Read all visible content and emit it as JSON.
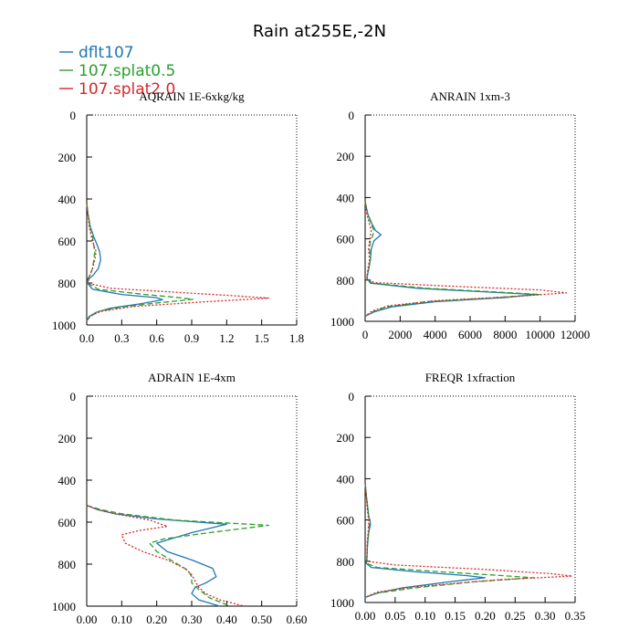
{
  "figure": {
    "title": "Rain at255E,-2N"
  },
  "legend": [
    {
      "name": "dflt107",
      "color": "#1f77b4",
      "dash": "solid"
    },
    {
      "name": "107.splat0.5",
      "color": "#2ca02c",
      "dash": "dashed"
    },
    {
      "name": "107.splat2.0",
      "color": "#d62728",
      "dash": "dotted"
    }
  ],
  "chart_data": [
    {
      "type": "line",
      "title": "AQRAIN  1E-6xkg/kg",
      "xlabel": "",
      "ylabel": "",
      "xlim": [
        0,
        1.8
      ],
      "ylim": [
        1000,
        0
      ],
      "xticks": [
        "0.0",
        "0.3",
        "0.6",
        "0.9",
        "1.2",
        "1.5",
        "1.8"
      ],
      "xtick_values": [
        0,
        0.3,
        0.6,
        0.9,
        1.2,
        1.5,
        1.8
      ],
      "yticks": [
        "0",
        "200",
        "400",
        "600",
        "800",
        "1000"
      ],
      "ytick_values": [
        0,
        200,
        400,
        600,
        800,
        1000
      ],
      "series": [
        {
          "name": "dflt107",
          "x": [
            0,
            0.01,
            0.03,
            0.06,
            0.09,
            0.11,
            0.12,
            0.1,
            0.06,
            0.02,
            0.005,
            0.05,
            0.3,
            0.6,
            0.65,
            0.45,
            0.2,
            0.08,
            0.02,
            0
          ],
          "y": [
            420,
            470,
            530,
            580,
            620,
            650,
            690,
            730,
            760,
            780,
            800,
            830,
            855,
            870,
            880,
            900,
            920,
            940,
            960,
            980
          ]
        },
        {
          "name": "107.splat0.5",
          "x": [
            0,
            0.01,
            0.03,
            0.05,
            0.06,
            0.07,
            0.06,
            0.05,
            0.03,
            0.01,
            0.005,
            0.1,
            0.5,
            0.8,
            0.91,
            0.6,
            0.3,
            0.1,
            0.03,
            0
          ],
          "y": [
            420,
            470,
            530,
            580,
            620,
            650,
            690,
            730,
            760,
            780,
            800,
            830,
            855,
            870,
            878,
            895,
            915,
            935,
            960,
            980
          ]
        },
        {
          "name": "107.splat2.0",
          "x": [
            0,
            0.01,
            0.02,
            0.04,
            0.06,
            0.08,
            0.07,
            0.05,
            0.03,
            0.01,
            0.005,
            0.2,
            0.8,
            1.3,
            1.56,
            1.0,
            0.4,
            0.12,
            0.03,
            0
          ],
          "y": [
            420,
            470,
            530,
            580,
            620,
            650,
            690,
            730,
            760,
            780,
            800,
            825,
            845,
            862,
            872,
            890,
            912,
            935,
            958,
            980
          ]
        }
      ]
    },
    {
      "type": "line",
      "title": "ANRAIN  1xm-3",
      "xlabel": "",
      "ylabel": "",
      "xlim": [
        0,
        12000
      ],
      "ylim": [
        1000,
        0
      ],
      "xticks": [
        "0",
        "2000",
        "4000",
        "6000",
        "8000",
        "10000",
        "12000"
      ],
      "xtick_values": [
        0,
        2000,
        4000,
        6000,
        8000,
        10000,
        12000
      ],
      "yticks": [
        "0",
        "200",
        "400",
        "600",
        "800",
        "1000"
      ],
      "ytick_values": [
        0,
        200,
        400,
        600,
        800,
        1000
      ],
      "series": [
        {
          "name": "dflt107",
          "x": [
            0,
            150,
            400,
            600,
            900,
            500,
            350,
            300,
            200,
            100,
            300,
            3000,
            7500,
            9700,
            8000,
            4000,
            1500,
            500,
            0
          ],
          "y": [
            420,
            480,
            530,
            560,
            580,
            610,
            650,
            700,
            750,
            790,
            815,
            840,
            860,
            870,
            885,
            905,
            930,
            955,
            975
          ]
        },
        {
          "name": "107.splat0.5",
          "x": [
            0,
            150,
            350,
            500,
            450,
            300,
            250,
            300,
            200,
            100,
            400,
            3500,
            8000,
            10000,
            7500,
            3500,
            1200,
            400,
            0
          ],
          "y": [
            420,
            480,
            530,
            560,
            580,
            610,
            650,
            700,
            750,
            790,
            815,
            840,
            860,
            870,
            885,
            905,
            930,
            955,
            975
          ]
        },
        {
          "name": "107.splat2.0",
          "x": [
            0,
            100,
            250,
            350,
            300,
            250,
            200,
            250,
            150,
            100,
            500,
            5000,
            10000,
            11500,
            8500,
            4000,
            1300,
            400,
            0
          ],
          "y": [
            420,
            480,
            530,
            560,
            580,
            610,
            650,
            700,
            750,
            790,
            812,
            830,
            848,
            862,
            880,
            900,
            925,
            950,
            975
          ]
        }
      ]
    },
    {
      "type": "line",
      "title": "ADRAIN  1E-4xm",
      "xlabel": "",
      "ylabel": "",
      "xlim": [
        0,
        0.6
      ],
      "ylim": [
        1000,
        0
      ],
      "xticks": [
        "0.00",
        "0.10",
        "0.20",
        "0.30",
        "0.40",
        "0.50",
        "0.60"
      ],
      "xtick_values": [
        0,
        0.1,
        0.2,
        0.3,
        0.4,
        0.5,
        0.6
      ],
      "yticks": [
        "0",
        "200",
        "400",
        "600",
        "800",
        "1000"
      ],
      "ytick_values": [
        0,
        200,
        400,
        600,
        800,
        1000
      ],
      "series": [
        {
          "name": "dflt107",
          "x": [
            0,
            0.03,
            0.08,
            0.2,
            0.4,
            0.3,
            0.24,
            0.2,
            0.23,
            0.3,
            0.36,
            0.37,
            0.34,
            0.31,
            0.3,
            0.32,
            0.38
          ],
          "y": [
            520,
            540,
            560,
            585,
            610,
            650,
            680,
            700,
            740,
            780,
            820,
            860,
            890,
            910,
            940,
            970,
            1000
          ]
        },
        {
          "name": "107.splat0.5",
          "x": [
            0,
            0.04,
            0.1,
            0.25,
            0.52,
            0.35,
            0.22,
            0.18,
            0.2,
            0.25,
            0.29,
            0.3,
            0.3,
            0.32,
            0.35,
            0.41
          ],
          "y": [
            520,
            540,
            560,
            590,
            615,
            650,
            680,
            700,
            740,
            790,
            830,
            860,
            890,
            920,
            960,
            1000
          ]
        },
        {
          "name": "107.splat2.0",
          "x": [
            0,
            0.03,
            0.08,
            0.18,
            0.23,
            0.15,
            0.1,
            0.11,
            0.16,
            0.23,
            0.28,
            0.3,
            0.31,
            0.32,
            0.34,
            0.38,
            0.45
          ],
          "y": [
            520,
            540,
            560,
            590,
            620,
            640,
            660,
            700,
            740,
            780,
            820,
            850,
            880,
            910,
            940,
            970,
            1000
          ]
        }
      ]
    },
    {
      "type": "line",
      "title": "FREQR  1xfraction",
      "xlabel": "",
      "ylabel": "",
      "xlim": [
        0,
        0.35
      ],
      "ylim": [
        1000,
        0
      ],
      "xticks": [
        "0.00",
        "0.05",
        "0.10",
        "0.15",
        "0.20",
        "0.25",
        "0.30",
        "0.35"
      ],
      "xtick_values": [
        0,
        0.05,
        0.1,
        0.15,
        0.2,
        0.25,
        0.3,
        0.35
      ],
      "yticks": [
        "0",
        "200",
        "400",
        "600",
        "800",
        "1000"
      ],
      "ytick_values": [
        0,
        200,
        400,
        600,
        800,
        1000
      ],
      "series": [
        {
          "name": "dflt107",
          "x": [
            0,
            0.002,
            0.004,
            0.006,
            0.009,
            0.006,
            0.004,
            0.003,
            0.002,
            0.01,
            0.08,
            0.17,
            0.2,
            0.14,
            0.06,
            0.02,
            0
          ],
          "y": [
            420,
            480,
            530,
            580,
            620,
            660,
            720,
            780,
            810,
            830,
            850,
            870,
            880,
            900,
            930,
            955,
            975
          ]
        },
        {
          "name": "107.splat0.5",
          "x": [
            0,
            0.002,
            0.004,
            0.006,
            0.007,
            0.006,
            0.004,
            0.003,
            0.002,
            0.02,
            0.12,
            0.23,
            0.28,
            0.18,
            0.08,
            0.02,
            0
          ],
          "y": [
            420,
            480,
            530,
            580,
            620,
            660,
            720,
            780,
            810,
            830,
            850,
            870,
            880,
            900,
            930,
            955,
            975
          ]
        },
        {
          "name": "107.splat2.0",
          "x": [
            0,
            0.002,
            0.003,
            0.005,
            0.006,
            0.005,
            0.003,
            0.003,
            0.003,
            0.05,
            0.2,
            0.31,
            0.345,
            0.22,
            0.08,
            0.02,
            0
          ],
          "y": [
            420,
            480,
            530,
            580,
            620,
            660,
            720,
            780,
            800,
            818,
            840,
            860,
            872,
            890,
            925,
            950,
            975
          ]
        }
      ]
    }
  ]
}
